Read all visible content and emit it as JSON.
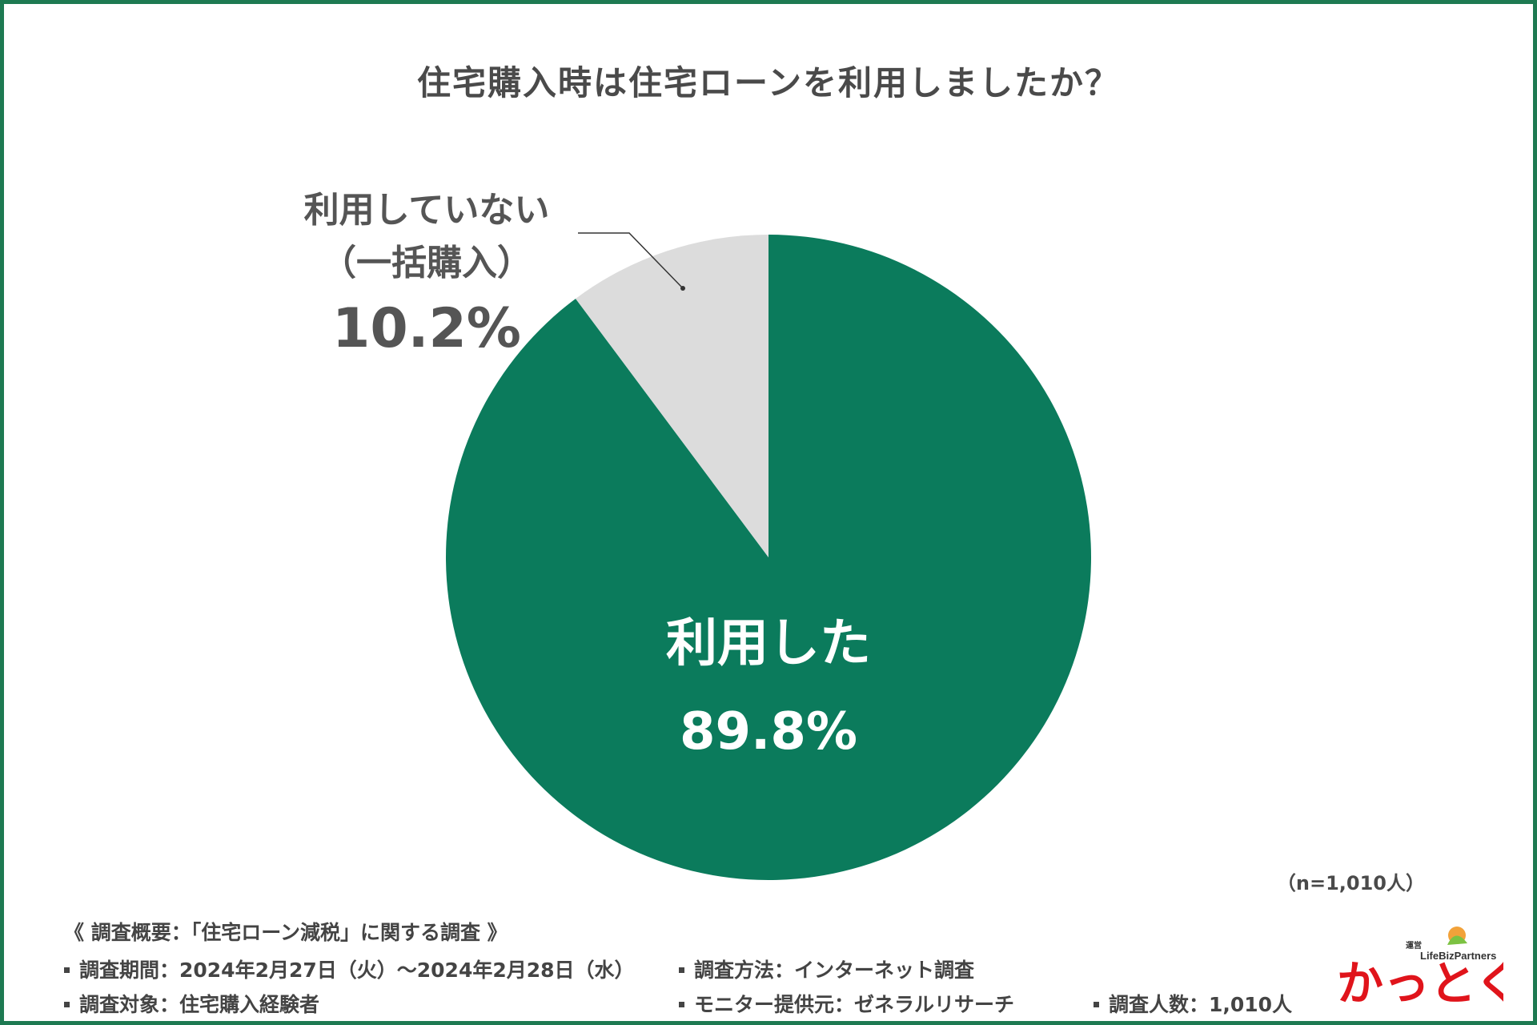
{
  "title": "住宅購入時は住宅ローンを利用しましたか？",
  "sample_size": "（n=1,010人）",
  "chart_data": {
    "type": "pie",
    "categories": [
      "利用した",
      "利用していない（一括購入）"
    ],
    "values": [
      89.8,
      10.2
    ],
    "labels": [
      {
        "lines": [
          "利用した"
        ],
        "percent": "89.8%"
      },
      {
        "lines": [
          "利用していない",
          "（一括購入）"
        ],
        "percent": "10.2%"
      }
    ],
    "colors": [
      "#0b7b5c",
      "#dcdcdc"
    ],
    "start_angle": "12 o'clock",
    "direction": "clockwise"
  },
  "footer": {
    "heading": "《 調査概要：「住宅ローン減税」に関する調査 》",
    "period": "調査期間：2024年2月27日（火）〜2024年2月28日（水）",
    "method": "調査方法：インターネット調査",
    "target": "調査対象：住宅購入経験者",
    "provider": "モニター提供元：ゼネラルリサーチ",
    "count": "調査人数：1,010人"
  },
  "logo": {
    "main": "かっとく！",
    "sub_label": "運営",
    "company": "LifeBizPartners"
  },
  "colors": {
    "frame": "#1e7a52",
    "text": "#444444"
  }
}
